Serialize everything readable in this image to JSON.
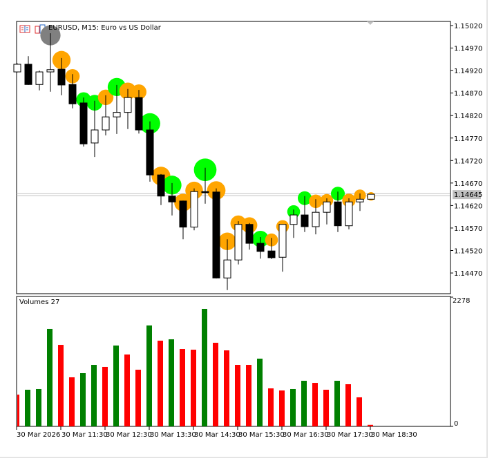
{
  "window": {
    "symbol_title": "EURUSD, M15:  Euro vs US Dollar",
    "volume_label": "Volumes 27"
  },
  "colors": {
    "bull_body": "#FFFFFF",
    "bear_body": "#000000",
    "volume_up": "#008000",
    "volume_down": "#FF0000",
    "marker_orange": "#FFA500",
    "marker_green": "#00FF00",
    "marker_gray": "#808080",
    "current_price_bg": "#C0C0C0"
  },
  "price_axis": {
    "ticks": [
      "1.15020",
      "1.14970",
      "1.14920",
      "1.14870",
      "1.14820",
      "1.14770",
      "1.14720",
      "1.14670",
      "1.14620",
      "1.14570",
      "1.14520",
      "1.14470"
    ],
    "current_price": "1.14645"
  },
  "volume_axis": {
    "max_label": "2278",
    "min_label": "0"
  },
  "time_axis": {
    "labels": [
      "30 Mar 2026",
      "30 Mar 11:30",
      "30 Mar 12:30",
      "30 Mar 13:30",
      "30 Mar 14:30",
      "30 Mar 15:30",
      "30 Mar 16:30",
      "30 Mar 17:30",
      "30 Mar 18:30"
    ]
  },
  "chart_data": {
    "type": "candlestick",
    "symbol": "EURUSD",
    "timeframe": "M15",
    "ylim": [
      1.1443,
      1.1503
    ],
    "volume_ylim": [
      0,
      2278
    ],
    "columns": [
      "time",
      "open",
      "high",
      "low",
      "close",
      "volume",
      "marker"
    ],
    "candles": [
      [
        "10:30",
        1.14917,
        1.14936,
        1.14916,
        1.14934,
        560,
        null
      ],
      [
        "10:45",
        1.14934,
        1.14952,
        1.14888,
        1.14889,
        646,
        null
      ],
      [
        "11:00",
        1.14889,
        1.1492,
        1.14876,
        1.14917,
        658,
        null
      ],
      [
        "11:15",
        1.14917,
        1.15003,
        1.14873,
        1.14922,
        1718,
        "gray"
      ],
      [
        "11:30",
        1.14923,
        1.14948,
        1.14865,
        1.14888,
        1437,
        "orange"
      ],
      [
        "11:45",
        1.14889,
        1.14912,
        1.14836,
        1.14846,
        865,
        "orange"
      ],
      [
        "12:00",
        1.14848,
        1.1486,
        1.14751,
        1.14757,
        938,
        "green"
      ],
      [
        "12:15",
        1.14759,
        1.14853,
        1.14728,
        1.14788,
        1084,
        "green"
      ],
      [
        "12:30",
        1.14788,
        1.14865,
        1.14776,
        1.14817,
        1048,
        "orange"
      ],
      [
        "12:45",
        1.14817,
        1.14888,
        1.14779,
        1.14827,
        1425,
        "green"
      ],
      [
        "13:00",
        1.14827,
        1.14879,
        1.1479,
        1.1486,
        1267,
        "orange"
      ],
      [
        "13:15",
        1.1486,
        1.14877,
        1.1478,
        1.14788,
        999,
        "orange"
      ],
      [
        "13:30",
        1.14788,
        1.14807,
        1.14673,
        1.14688,
        1779,
        "green"
      ],
      [
        "13:45",
        1.14688,
        1.1469,
        1.14621,
        1.14641,
        1511,
        "orange"
      ],
      [
        "14:00",
        1.14641,
        1.1467,
        1.14598,
        1.14628,
        1535,
        "green"
      ],
      [
        "14:15",
        1.1463,
        1.14631,
        1.14545,
        1.14572,
        1364,
        "orange"
      ],
      [
        "14:30",
        1.14572,
        1.14658,
        1.14565,
        1.14651,
        1352,
        "orange"
      ],
      [
        "14:45",
        1.14651,
        1.14704,
        1.14624,
        1.1465,
        2071,
        "green"
      ],
      [
        "15:00",
        1.1465,
        1.14658,
        1.14458,
        1.14459,
        1474,
        "orange"
      ],
      [
        "15:15",
        1.14459,
        1.14545,
        1.14432,
        1.14499,
        1340,
        "orange"
      ],
      [
        "15:30",
        1.14499,
        1.14585,
        1.14489,
        1.14578,
        1084,
        "orange"
      ],
      [
        "15:45",
        1.14578,
        1.14581,
        1.14522,
        1.14536,
        1084,
        "orange"
      ],
      [
        "16:00",
        1.14536,
        1.1455,
        1.14502,
        1.14518,
        1194,
        "green"
      ],
      [
        "16:15",
        1.14519,
        1.14548,
        1.14501,
        1.14504,
        670,
        "orange"
      ],
      [
        "16:30",
        1.14505,
        1.14578,
        1.14473,
        1.14578,
        633,
        "orange"
      ],
      [
        "16:45",
        1.14578,
        1.14611,
        1.14548,
        1.14599,
        658,
        "green"
      ],
      [
        "17:00",
        1.14599,
        1.14641,
        1.14561,
        1.14573,
        804,
        "green"
      ],
      [
        "17:15",
        1.14573,
        1.14634,
        1.14556,
        1.14605,
        767,
        "orange"
      ],
      [
        "17:30",
        1.14605,
        1.14636,
        1.14578,
        1.14628,
        646,
        "orange"
      ],
      [
        "17:45",
        1.14628,
        1.14651,
        1.14561,
        1.14575,
        804,
        "green"
      ],
      [
        "18:00",
        1.14575,
        1.14636,
        1.14567,
        1.14628,
        743,
        "orange"
      ],
      [
        "18:15",
        1.14628,
        1.14647,
        1.14608,
        1.14634,
        512,
        "orange"
      ],
      [
        "18:30",
        1.14634,
        1.14645,
        1.14634,
        1.14645,
        27,
        "orange"
      ]
    ],
    "volume_colors": [
      "down",
      "up",
      "up",
      "up",
      "down",
      "down",
      "up",
      "up",
      "down",
      "up",
      "down",
      "down",
      "up",
      "down",
      "up",
      "down",
      "down",
      "up",
      "down",
      "down",
      "down",
      "down",
      "up",
      "down",
      "down",
      "up",
      "up",
      "down",
      "down",
      "up",
      "down",
      "down",
      "down"
    ]
  }
}
